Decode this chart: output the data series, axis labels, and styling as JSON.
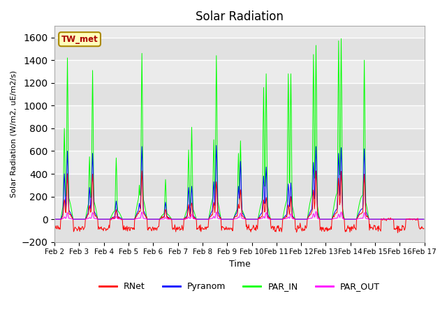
{
  "title": "Solar Radiation",
  "ylabel": "Solar Radiation (W/m2, uE/m2/s)",
  "xlabel": "Time",
  "ylim": [
    -200,
    1700
  ],
  "yticks": [
    -200,
    0,
    200,
    400,
    600,
    800,
    1000,
    1200,
    1400,
    1600
  ],
  "xtick_labels": [
    "Feb 2",
    "Feb 3",
    "Feb 4",
    "Feb 5",
    "Feb 6",
    "Feb 7",
    "Feb 8",
    "Feb 9",
    "Feb 10",
    "Feb 11",
    "Feb 12",
    "Feb 13",
    "Feb 14",
    "Feb 15",
    "Feb 16",
    "Feb 17"
  ],
  "legend_labels": [
    "RNet",
    "Pyranom",
    "PAR_IN",
    "PAR_OUT"
  ],
  "colors": {
    "RNet": "#ff0000",
    "Pyranom": "#0000ff",
    "PAR_IN": "#00ff00",
    "PAR_OUT": "#ff00ff"
  },
  "station_label": "TW_met",
  "station_label_color": "#aa0000",
  "station_label_bg": "#ffffbb",
  "station_label_edge": "#aa8800",
  "bg_color": "#ebebeb",
  "fig_bg": "#ffffff",
  "linewidth": 0.7,
  "rnet_night": -80,
  "total_days": 15,
  "day_data": [
    {
      "peaks_PAR": [
        800,
        1420
      ],
      "peaks_Pyr": [
        400,
        600
      ],
      "peaks_RNet": [
        180,
        400
      ],
      "peaks_PAR_OUT": [
        20,
        60
      ],
      "peak_hours": [
        9.5,
        12.5
      ]
    },
    {
      "peaks_PAR": [
        550,
        1310
      ],
      "peaks_Pyr": [
        280,
        580
      ],
      "peaks_RNet": [
        120,
        410
      ],
      "peaks_PAR_OUT": [
        15,
        60
      ],
      "peak_hours": [
        10.0,
        13.0
      ]
    },
    {
      "peaks_PAR": [
        540
      ],
      "peaks_Pyr": [
        160
      ],
      "peaks_RNet": [
        80
      ],
      "peaks_PAR_OUT": [
        25
      ],
      "peak_hours": [
        12.0
      ]
    },
    {
      "peaks_PAR": [
        300,
        1460
      ],
      "peaks_Pyr": [
        140,
        640
      ],
      "peaks_RNet": [
        70,
        430
      ],
      "peaks_PAR_OUT": [
        10,
        65
      ],
      "peak_hours": [
        10.5,
        13.0
      ]
    },
    {
      "peaks_PAR": [
        350
      ],
      "peaks_Pyr": [
        150
      ],
      "peaks_RNet": [
        90
      ],
      "peaks_PAR_OUT": [
        15
      ],
      "peak_hours": [
        12.0
      ]
    },
    {
      "peaks_PAR": [
        610,
        810
      ],
      "peaks_Pyr": [
        280,
        290
      ],
      "peaks_RNet": [
        130,
        150
      ],
      "peaks_PAR_OUT": [
        20,
        45
      ],
      "peak_hours": [
        10.5,
        13.5
      ]
    },
    {
      "peaks_PAR": [
        700,
        1440
      ],
      "peaks_Pyr": [
        330,
        650
      ],
      "peaks_RNet": [
        150,
        330
      ],
      "peaks_PAR_OUT": [
        25,
        65
      ],
      "peak_hours": [
        11.0,
        13.5
      ]
    },
    {
      "peaks_PAR": [
        580,
        690
      ],
      "peaks_Pyr": [
        290,
        510
      ],
      "peaks_RNet": [
        130,
        260
      ],
      "peaks_PAR_OUT": [
        20,
        55
      ],
      "peak_hours": [
        11.0,
        13.0
      ]
    },
    {
      "peaks_PAR": [
        1160,
        1280
      ],
      "peaks_Pyr": [
        380,
        460
      ],
      "peaks_RNet": [
        170,
        200
      ],
      "peaks_PAR_OUT": [
        25,
        60
      ],
      "peak_hours": [
        11.5,
        14.0
      ]
    },
    {
      "peaks_PAR": [
        1280,
        1280
      ],
      "peaks_Pyr": [
        310,
        320
      ],
      "peaks_RNet": [
        130,
        190
      ],
      "peaks_PAR_OUT": [
        20,
        50
      ],
      "peak_hours": [
        11.5,
        14.0
      ]
    },
    {
      "peaks_PAR": [
        1450,
        1530
      ],
      "peaks_Pyr": [
        500,
        640
      ],
      "peaks_RNet": [
        260,
        430
      ],
      "peaks_PAR_OUT": [
        50,
        70
      ],
      "peak_hours": [
        12.0,
        14.5
      ]
    },
    {
      "peaks_PAR": [
        1570,
        1590
      ],
      "peaks_Pyr": [
        580,
        630
      ],
      "peaks_RNet": [
        360,
        420
      ],
      "peaks_PAR_OUT": [
        45,
        65
      ],
      "peak_hours": [
        12.5,
        15.0
      ]
    },
    {
      "peaks_PAR": [
        1400
      ],
      "peaks_Pyr": [
        620
      ],
      "peaks_RNet": [
        390
      ],
      "peaks_PAR_OUT": [
        60
      ],
      "peak_hours": [
        13.5
      ]
    }
  ]
}
